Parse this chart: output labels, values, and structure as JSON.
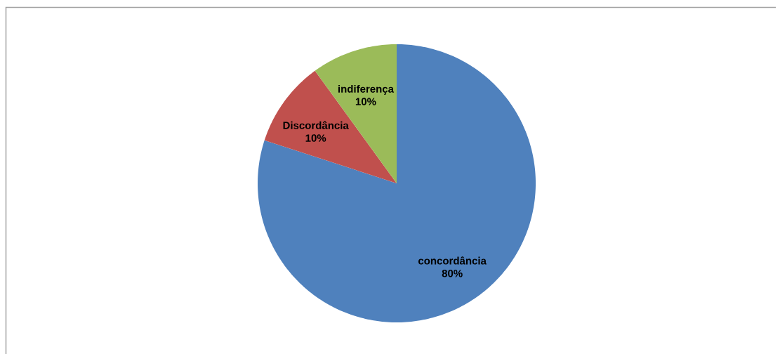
{
  "chart_data": {
    "type": "pie",
    "categories": [
      "concordância",
      "Discordância",
      "indiferença"
    ],
    "values": [
      80,
      10,
      10
    ],
    "colors": [
      "#4f81bd",
      "#c0504d",
      "#9bbb59"
    ],
    "value_labels": [
      "80%",
      "10%",
      "10%"
    ]
  }
}
